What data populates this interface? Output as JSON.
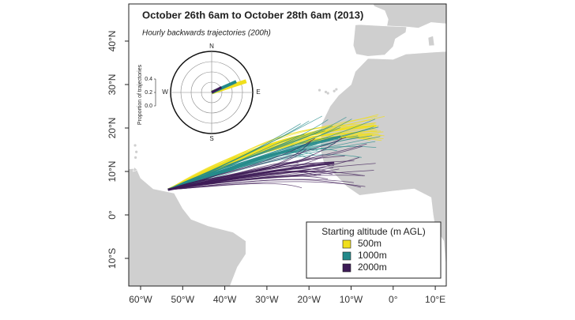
{
  "title": "October 26th 6am to October 28th 6am (2013)",
  "subtitle": "Hourly backwards trajectories (200h)",
  "map": {
    "lon_ticks": [
      {
        "value": -60,
        "label": "60°W"
      },
      {
        "value": -50,
        "label": "50°W"
      },
      {
        "value": -40,
        "label": "40°W"
      },
      {
        "value": -30,
        "label": "30°W"
      },
      {
        "value": -20,
        "label": "20°W"
      },
      {
        "value": -10,
        "label": "10°W"
      },
      {
        "value": 0,
        "label": "0°"
      },
      {
        "value": 10,
        "label": "10°E"
      }
    ],
    "lat_ticks": [
      {
        "value": 40,
        "label": "40°N"
      },
      {
        "value": 30,
        "label": "30°N"
      },
      {
        "value": 20,
        "label": "20°N"
      },
      {
        "value": 10,
        "label": "10°N"
      },
      {
        "value": 0,
        "label": "0°"
      },
      {
        "value": -10,
        "label": "10°S"
      }
    ]
  },
  "rose": {
    "axis_label": "Proportion of trajectories",
    "directions": {
      "north": "N",
      "east": "E",
      "south": "S",
      "west": "W"
    },
    "ticks": [
      {
        "value": 0,
        "label": "0.0"
      },
      {
        "value": 0.2,
        "label": "0.2"
      },
      {
        "value": 0.4,
        "label": "0.4"
      }
    ]
  },
  "legend": {
    "title": "Starting altitude (m AGL)",
    "entries": [
      {
        "label": "500m",
        "color": "#f0df1c"
      },
      {
        "label": "1000m",
        "color": "#23898a"
      },
      {
        "label": "2000m",
        "color": "#3d1b56"
      }
    ]
  }
}
